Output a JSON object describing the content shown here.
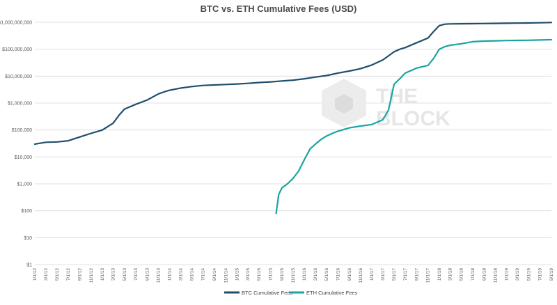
{
  "chart_data": {
    "type": "line",
    "title": "BTC vs. ETH Cumulative Fees (USD)",
    "xlabel": "",
    "ylabel": "",
    "yscale": "log",
    "ylim": [
      1,
      1000000000
    ],
    "y_ticks": [
      1,
      10,
      100,
      1000,
      10000,
      100000,
      1000000,
      10000000,
      100000000,
      1000000000
    ],
    "y_tick_labels": [
      "$1",
      "$10",
      "$100",
      "$1,000",
      "$10,000",
      "$100,000",
      "$1,000,000",
      "$10,000,000",
      "$100,000,000",
      "$1,000,000,000"
    ],
    "x_tick_labels": [
      "1/1/12",
      "3/1/12",
      "5/1/12",
      "7/1/12",
      "9/1/12",
      "11/1/12",
      "1/1/13",
      "3/1/13",
      "5/1/13",
      "7/1/13",
      "9/1/13",
      "11/1/13",
      "1/1/14",
      "3/1/14",
      "5/1/14",
      "7/1/14",
      "9/1/14",
      "11/1/14",
      "1/1/15",
      "3/1/15",
      "5/1/15",
      "7/1/15",
      "9/1/15",
      "11/1/15",
      "1/1/16",
      "3/1/16",
      "5/1/16",
      "7/1/16",
      "9/1/16",
      "11/1/16",
      "1/1/17",
      "3/1/17",
      "5/1/17",
      "7/1/17",
      "9/1/17",
      "11/1/17",
      "1/1/18",
      "3/1/18",
      "5/1/18",
      "7/1/18",
      "9/1/18",
      "11/1/18",
      "1/1/19",
      "3/1/19",
      "5/1/19",
      "7/1/19",
      "9/1/19"
    ],
    "grid": true,
    "legend_position": "bottom",
    "series": [
      {
        "name": "BTC Cumulative Fees",
        "color": "#1f4e6b",
        "x": [
          "1/1/12",
          "3/1/12",
          "5/1/12",
          "7/1/12",
          "9/1/12",
          "11/1/12",
          "1/1/13",
          "3/1/13",
          "4/1/13",
          "5/1/13",
          "7/1/13",
          "9/1/13",
          "11/1/13",
          "12/1/13",
          "1/1/14",
          "3/1/14",
          "5/1/14",
          "7/1/14",
          "9/1/14",
          "11/1/14",
          "1/1/15",
          "3/1/15",
          "5/1/15",
          "7/1/15",
          "9/1/15",
          "11/1/15",
          "1/1/16",
          "3/1/16",
          "5/1/16",
          "7/1/16",
          "9/1/16",
          "11/1/16",
          "1/1/17",
          "3/1/17",
          "5/1/17",
          "6/1/17",
          "7/1/17",
          "9/1/17",
          "11/1/17",
          "12/1/17",
          "1/1/18",
          "2/1/18",
          "3/1/18",
          "5/1/18",
          "7/1/18",
          "9/1/18",
          "11/1/18",
          "1/1/19",
          "3/1/19",
          "5/1/19",
          "7/1/19",
          "9/1/19"
        ],
        "values": [
          30000,
          35000,
          36000,
          40000,
          55000,
          75000,
          100000,
          180000,
          350000,
          600000,
          900000,
          1300000,
          2200000,
          2600000,
          3000000,
          3600000,
          4100000,
          4500000,
          4700000,
          4900000,
          5100000,
          5400000,
          5800000,
          6100000,
          6600000,
          7100000,
          8000000,
          9200000,
          10500000,
          13000000,
          15500000,
          19000000,
          26000000,
          40000000,
          80000000,
          100000000,
          115000000,
          175000000,
          260000000,
          450000000,
          750000000,
          850000000,
          870000000,
          880000000,
          890000000,
          900000000,
          910000000,
          920000000,
          930000000,
          940000000,
          960000000,
          980000000
        ]
      },
      {
        "name": "ETH Cumulative Fees",
        "color": "#1aa3a3",
        "x": [
          "8/1/15",
          "8/15/15",
          "9/1/15",
          "10/1/15",
          "11/1/15",
          "12/1/15",
          "1/1/16",
          "2/1/16",
          "3/1/16",
          "4/1/16",
          "5/1/16",
          "6/1/16",
          "7/1/16",
          "9/1/16",
          "11/1/16",
          "1/1/17",
          "3/1/17",
          "4/1/17",
          "5/1/17",
          "6/1/17",
          "7/1/17",
          "9/1/17",
          "11/1/17",
          "12/1/17",
          "1/1/18",
          "2/1/18",
          "3/1/18",
          "5/1/18",
          "7/1/18",
          "9/1/18",
          "11/1/18",
          "1/1/19",
          "3/1/19",
          "5/1/19",
          "7/1/19",
          "9/1/19"
        ],
        "values": [
          80,
          400,
          700,
          1000,
          1600,
          3000,
          8000,
          20000,
          30000,
          45000,
          60000,
          75000,
          90000,
          120000,
          140000,
          160000,
          240000,
          550000,
          5000000,
          8000000,
          13000000,
          20000000,
          25000000,
          45000000,
          100000000,
          125000000,
          140000000,
          160000000,
          190000000,
          200000000,
          205000000,
          210000000,
          212000000,
          215000000,
          220000000,
          225000000
        ]
      }
    ]
  },
  "watermark": {
    "line1": "THE",
    "line2": "BLOCK"
  }
}
